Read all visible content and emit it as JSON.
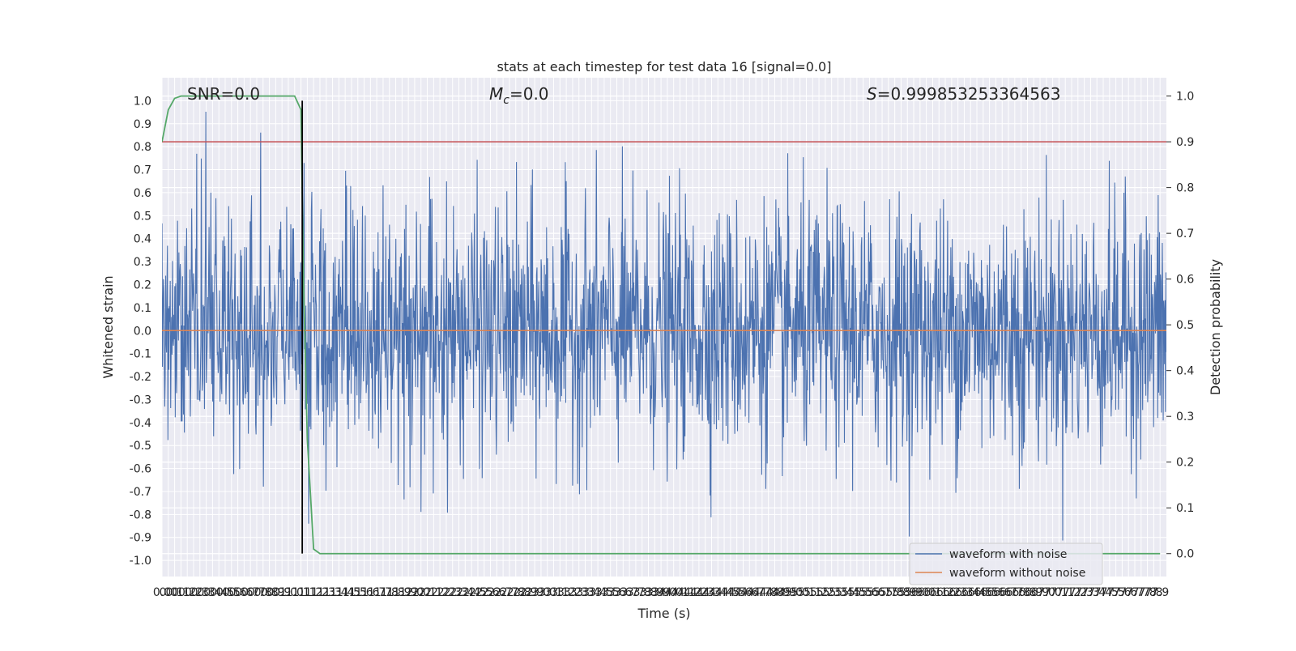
{
  "chart_data": {
    "type": "line",
    "title": "stats at each timestep for test data 16 [signal=0.0]",
    "xlabel": "Time (s)",
    "ylabel_left": "Whitened strain",
    "ylabel_right": "Detection probability",
    "xlim": [
      0.0,
      7.95
    ],
    "ylim_left": [
      -1.07,
      1.1
    ],
    "ylim_right": [
      -0.05,
      1.04
    ],
    "grid": true,
    "x_ticks": [
      0.0,
      0.05,
      0.1,
      0.15,
      0.2,
      0.25,
      0.3,
      0.35,
      0.4,
      0.45,
      0.5,
      0.55,
      0.6,
      0.65,
      0.7,
      0.75,
      0.8,
      0.85,
      0.9,
      0.95,
      1.0,
      1.05,
      1.1,
      1.15,
      1.2,
      1.25,
      1.3,
      1.35,
      1.4,
      1.45,
      1.5,
      1.55,
      1.6,
      1.65,
      1.7,
      1.75,
      1.8,
      1.85,
      1.9,
      1.95,
      2.0,
      2.05,
      2.1,
      2.15,
      2.2,
      2.25,
      2.3,
      2.35,
      2.4,
      2.45,
      2.5,
      2.55,
      2.6,
      2.65,
      2.7,
      2.75,
      2.8,
      2.85,
      2.9,
      2.95,
      3.0,
      3.05,
      3.1,
      3.15,
      3.2,
      3.25,
      3.3,
      3.35,
      3.4,
      3.45,
      3.5,
      3.55,
      3.6,
      3.65,
      3.7,
      3.75,
      3.8,
      3.85,
      3.9,
      3.95,
      4.0,
      4.05,
      4.1,
      4.15,
      4.2,
      4.25,
      4.3,
      4.35,
      4.4,
      4.45,
      4.5,
      4.55,
      4.6,
      4.65,
      4.7,
      4.75,
      4.8,
      4.85,
      4.9,
      4.95,
      5.0,
      5.05,
      5.1,
      5.15,
      5.2,
      5.25,
      5.3,
      5.35,
      5.4,
      5.45,
      5.5,
      5.55,
      5.6,
      5.65,
      5.7,
      5.75,
      5.8,
      5.85,
      5.9,
      5.95,
      6.0,
      6.05,
      6.1,
      6.15,
      6.2,
      6.25,
      6.3,
      6.35,
      6.4,
      6.45,
      6.5,
      6.55,
      6.6,
      6.65,
      6.7,
      6.75,
      6.8,
      6.85,
      6.9,
      6.95,
      7.0,
      7.05,
      7.1,
      7.15,
      7.2,
      7.25,
      7.3,
      7.35,
      7.4,
      7.45,
      7.5,
      7.55,
      7.6,
      7.65,
      7.7,
      7.75,
      7.8,
      7.85,
      7.9
    ],
    "x_tick_labels": [
      "0.0",
      "0.0",
      "0.1",
      "0.1",
      "0.2",
      "0.2",
      "0.3",
      "0.3",
      "0.4",
      "0.4",
      "0.5",
      "0.5",
      "0.6",
      "0.6",
      "0.7",
      "0.7",
      "0.8",
      "0.8",
      "0.9",
      "0.9",
      "1.0",
      "1.0",
      "1.1",
      "1.1",
      "1.2",
      "1.2",
      "1.3",
      "1.3",
      "1.4",
      "1.4",
      "1.5",
      "1.5",
      "1.6",
      "1.6",
      "1.7",
      "1.7",
      "1.8",
      "1.8",
      "1.9",
      "1.9",
      "2.0",
      "2.0",
      "2.1",
      "2.1",
      "2.2",
      "2.2",
      "2.3",
      "2.3",
      "2.4",
      "2.4",
      "2.5",
      "2.5",
      "2.6",
      "2.6",
      "2.7",
      "2.7",
      "2.8",
      "2.8",
      "2.9",
      "2.9",
      "3.0",
      "3.0",
      "3.1",
      "3.1",
      "3.2",
      "3.2",
      "3.3",
      "3.3",
      "3.4",
      "3.4",
      "3.5",
      "3.5",
      "3.6",
      "3.6",
      "3.7",
      "3.7",
      "3.8",
      "3.8",
      "3.9",
      "3.9",
      "4.0",
      "4.0",
      "4.1",
      "4.1",
      "4.2",
      "4.2",
      "4.3",
      "4.3",
      "4.4",
      "4.4",
      "4.5",
      "4.5",
      "4.6",
      "4.6",
      "4.7",
      "4.7",
      "4.8",
      "4.8",
      "4.9",
      "4.9",
      "5.0",
      "5.0",
      "5.1",
      "5.1",
      "5.2",
      "5.2",
      "5.3",
      "5.3",
      "5.4",
      "5.4",
      "5.5",
      "5.5",
      "5.6",
      "5.6",
      "5.7",
      "5.7",
      "5.8",
      "5.8",
      "5.9",
      "5.9",
      "6.0",
      "6.0",
      "6.1",
      "6.1",
      "6.2",
      "6.2",
      "6.3",
      "6.3",
      "6.4",
      "6.4",
      "6.5",
      "6.5",
      "6.6",
      "6.6",
      "6.7",
      "6.7",
      "6.8",
      "6.8",
      "6.9",
      "6.9",
      "7.0",
      "7.0",
      "7.1",
      "7.1",
      "7.2",
      "7.2",
      "7.3",
      "7.3",
      "7.4",
      "7.4",
      "7.5",
      "7.5",
      "7.6",
      "7.6",
      "7.7",
      "7.7",
      "7.8",
      "7.8",
      "7.9"
    ],
    "y_ticks_left": [
      -1.0,
      -0.9,
      -0.8,
      -0.7,
      -0.6,
      -0.5,
      -0.4,
      -0.3,
      -0.2,
      -0.1,
      0.0,
      0.1,
      0.2,
      0.3,
      0.4,
      0.5,
      0.6,
      0.7,
      0.8,
      0.9,
      1.0
    ],
    "y_tick_labels_left": [
      "-1.0",
      "-0.9",
      "-0.8",
      "-0.7",
      "-0.6",
      "-0.5",
      "-0.4",
      "-0.3",
      "-0.2",
      "-0.1",
      "0.0",
      "0.1",
      "0.2",
      "0.3",
      "0.4",
      "0.5",
      "0.6",
      "0.7",
      "0.8",
      "0.9",
      "1.0"
    ],
    "y_ticks_right": [
      0.0,
      0.1,
      0.2,
      0.3,
      0.4,
      0.5,
      0.6,
      0.7,
      0.8,
      0.9,
      1.0
    ],
    "y_tick_labels_right": [
      "0.0",
      "0.1",
      "0.2",
      "0.3",
      "0.4",
      "0.5",
      "0.6",
      "0.7",
      "0.8",
      "0.9",
      "1.0"
    ],
    "annotations": {
      "snr": "SNR=0.0",
      "mc_symbol": "M",
      "mc_sub": "c",
      "mc_value": "=0.0",
      "s_symbol": "S",
      "s_value": "=0.999853253364563"
    },
    "legend": {
      "placement": "lower-right",
      "entries": [
        {
          "label": "waveform with noise",
          "color": "#4c72b0"
        },
        {
          "label": "waveform without noise",
          "color": "#dd8452"
        }
      ]
    },
    "series": [
      {
        "name": "waveform with noise",
        "axis": "left",
        "color": "#4c72b0",
        "x_range": [
          0.0,
          7.95
        ],
        "samples": 2200,
        "envelope": {
          "core": 0.4,
          "peak_pos": 1.0,
          "peak_neg": -0.97
        }
      },
      {
        "name": "waveform without noise",
        "axis": "left",
        "color": "#dd8452",
        "x": [
          0.0,
          7.95
        ],
        "y": [
          0.0,
          0.0
        ]
      },
      {
        "name": "Detection probability",
        "axis": "right",
        "color": "#55a868",
        "x": [
          0.0,
          0.05,
          0.1,
          0.15,
          0.2,
          0.4,
          0.6,
          0.8,
          1.0,
          1.05,
          1.1,
          1.12,
          1.15,
          1.2,
          1.25,
          1.3,
          1.4,
          2.0,
          3.0,
          4.0,
          5.0,
          6.0,
          7.0,
          7.9
        ],
        "y": [
          0.9,
          0.97,
          0.995,
          1.0,
          1.0,
          1.0,
          1.0,
          1.0,
          1.0,
          1.0,
          0.97,
          0.6,
          0.25,
          0.01,
          0.0,
          0.0,
          0.0,
          0.0,
          0.0,
          0.0,
          0.0,
          0.0,
          0.0,
          0.0
        ]
      }
    ],
    "threshold": {
      "axis": "right",
      "value": 0.9,
      "color": "#c44e52"
    },
    "marker_line": {
      "x": 1.11,
      "axis": "left",
      "y_range": [
        -0.97,
        1.0
      ],
      "color": "#000000"
    }
  }
}
